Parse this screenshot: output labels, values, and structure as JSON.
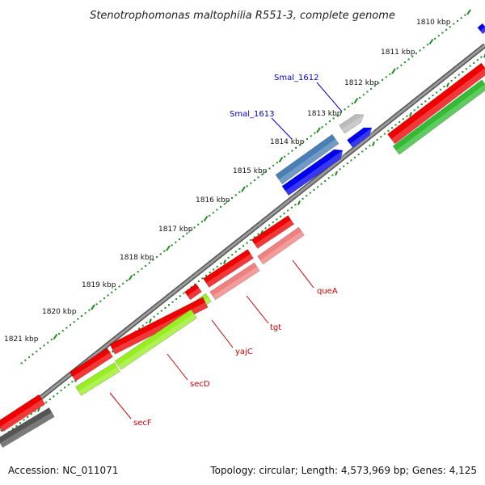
{
  "title": "Stenotrophomonas maltophilia R551-3, complete genome",
  "footer": {
    "accession": "Accession: NC_011071",
    "summary": "Topology: circular; Length: 4,573,969 bp; Genes: 4,125"
  },
  "ticks": [
    {
      "label": "1810 kbp",
      "major_pos": 1810.0
    },
    {
      "label": "1811 kbp",
      "major_pos": 1811.0
    },
    {
      "label": "1812 kbp",
      "major_pos": 1812.0
    },
    {
      "label": "1813 kbp",
      "major_pos": 1813.0
    },
    {
      "label": "1814 kbp",
      "major_pos": 1814.0
    },
    {
      "label": "1815 kbp",
      "major_pos": 1815.0
    },
    {
      "label": "1816 kbp",
      "major_pos": 1816.0
    },
    {
      "label": "1817 kbp",
      "major_pos": 1817.0
    },
    {
      "label": "1818 kbp",
      "major_pos": 1818.0
    },
    {
      "label": "1819 kbp",
      "major_pos": 1819.0
    },
    {
      "label": "1820 kbp",
      "major_pos": 1820.0
    },
    {
      "label": "1821 kbp",
      "major_pos": 1821.0
    }
  ],
  "gene_labels": [
    {
      "name": "Smal_1612",
      "color": "#0000cc"
    },
    {
      "name": "Smal_1613",
      "color": "#0000cc"
    },
    {
      "name": "queA",
      "color": "#cc0000"
    },
    {
      "name": "tgt",
      "color": "#cc0000"
    },
    {
      "name": "yajC",
      "color": "#cc0000"
    },
    {
      "name": "secD",
      "color": "#cc0000"
    },
    {
      "name": "secF",
      "color": "#cc0000"
    }
  ],
  "colors": {
    "cds_red": "#ee0000",
    "cds_pink": "#f08080",
    "cds_green": "#33bb33",
    "cds_lime": "#99ee22",
    "cds_blue": "#0000ee",
    "cds_steel": "#4a7fb5",
    "cds_gray": "#bbbbbb",
    "cds_dark": "#555555",
    "backbone": "#888888",
    "tick_green": "#1a8a1a"
  }
}
